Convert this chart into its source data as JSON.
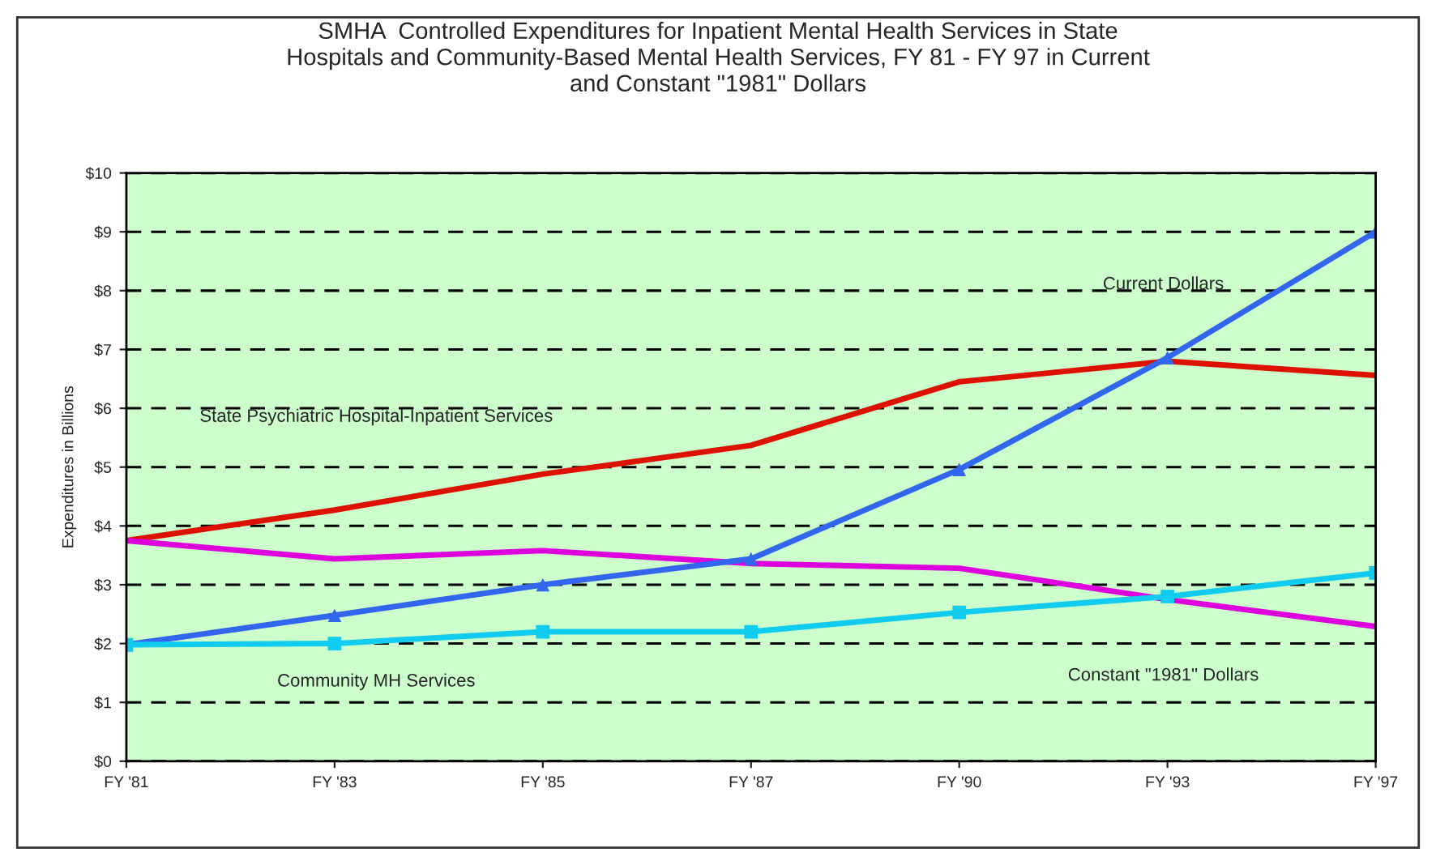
{
  "chart_data": {
    "type": "line",
    "title": "SMHA  Controlled Expenditures for Inpatient Mental Health Services in State\nHospitals and Community-Based Mental Health Services, FY 81 - FY 97 in Current\nand Constant \"1981\" Dollars",
    "ylabel": "Expenditures in Billions",
    "categories": [
      "FY '81",
      "FY '83",
      "FY '85",
      "FY '87",
      "FY '90",
      "FY '93",
      "FY '97"
    ],
    "series": [
      {
        "color": "#dd1100",
        "marker": "none",
        "values": [
          3.75,
          4.27,
          4.88,
          5.37,
          6.45,
          6.8,
          6.56
        ]
      },
      {
        "color": "#dd00dd",
        "marker": "none",
        "values": [
          3.75,
          3.44,
          3.58,
          3.36,
          3.28,
          2.75,
          2.29
        ]
      },
      {
        "color": "#3366ee",
        "marker": "triangle",
        "values": [
          1.98,
          2.48,
          3.0,
          3.44,
          4.96,
          6.86,
          9.0
        ]
      },
      {
        "color": "#11ccee",
        "marker": "square",
        "values": [
          1.98,
          2.0,
          2.2,
          2.2,
          2.53,
          2.8,
          3.2
        ]
      }
    ],
    "ylim": [
      0,
      10
    ],
    "yticks": [
      {
        "value": 0,
        "label": "$0"
      },
      {
        "value": 1,
        "label": "$1"
      },
      {
        "value": 2,
        "label": "$2"
      },
      {
        "value": 3,
        "label": "$3"
      },
      {
        "value": 4,
        "label": "$4"
      },
      {
        "value": 5,
        "label": "$5"
      },
      {
        "value": 6,
        "label": "$6"
      },
      {
        "value": 7,
        "label": "$7"
      },
      {
        "value": 8,
        "label": "$8"
      },
      {
        "value": 9,
        "label": "$9"
      },
      {
        "value": 10,
        "label": "$10"
      }
    ],
    "grid": "y",
    "legend": false,
    "line_style": "solid",
    "annotations": [
      "State Psychiatric Hospital-Inpatient Services",
      "Community MH Services",
      "Current Dollars",
      "Constant \"1981\" Dollars"
    ]
  }
}
